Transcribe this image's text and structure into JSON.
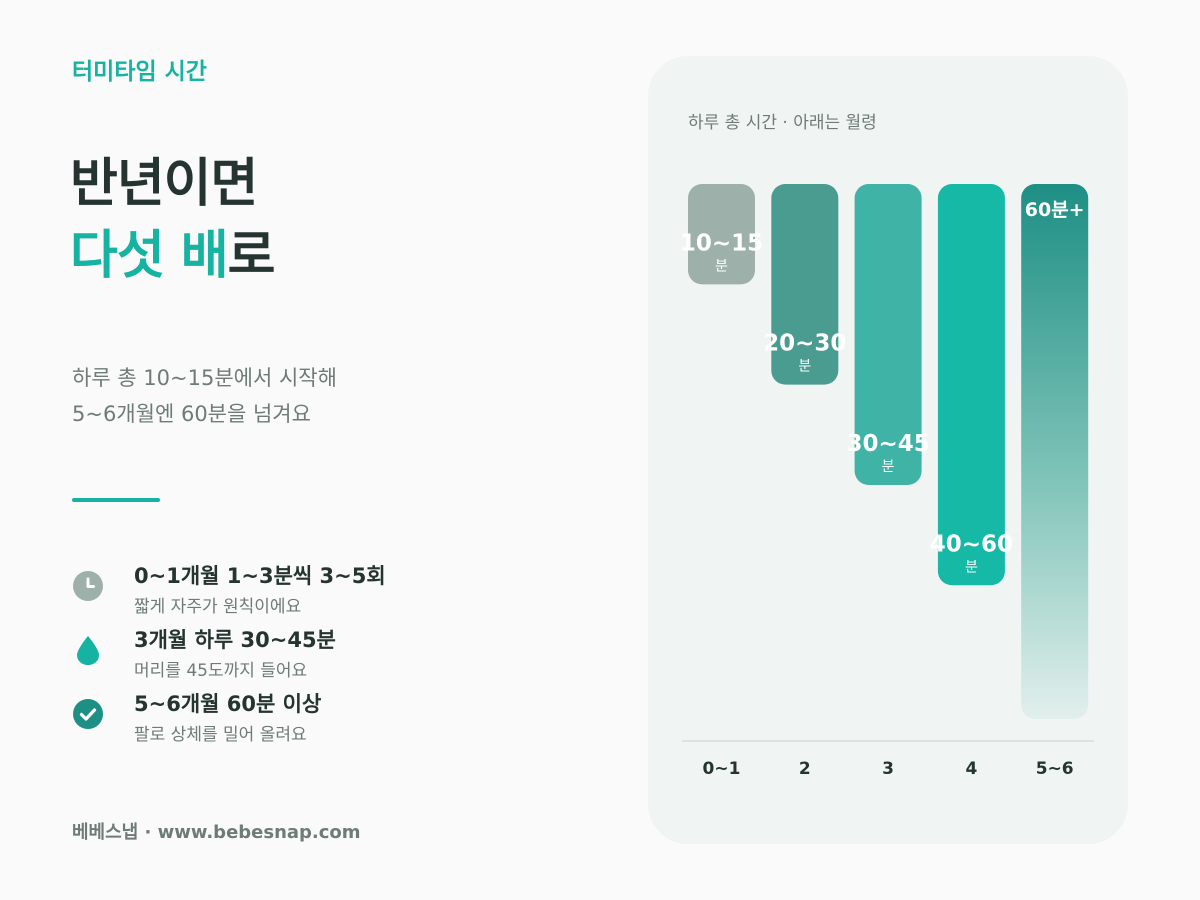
{
  "eyebrow": "터미타임 시간",
  "headline": {
    "line1": "반년이면",
    "line2_accent": "다섯 배",
    "line2_rest": "로"
  },
  "subtitle": {
    "line1": "하루 총 10~15분에서 시작해",
    "line2": "5~6개월엔 60분을 넘겨요"
  },
  "points": [
    {
      "icon": "clock-icon",
      "title": "0~1개월 1~3분씩 3~5회",
      "desc": "짧게 자주가 원칙이에요"
    },
    {
      "icon": "droplet-icon",
      "title": "3개월 하루 30~45분",
      "desc": "머리를 45도까지 들어요"
    },
    {
      "icon": "check-circle-icon",
      "title": "5~6개월 60분 이상",
      "desc": "팔로 상체를 밀어 올려요"
    }
  ],
  "footer": "베베스냅 · www.bebesnap.com",
  "colors": {
    "accent": "#16b3a2",
    "bars": [
      "#9db0aa",
      "#4a9c90",
      "#3eb3a6",
      "#16b8a6",
      "#1e8f85"
    ]
  },
  "chart_data": {
    "type": "bar",
    "title": "하루 총 시간 · 아래는 월령",
    "categories": [
      "0~1",
      "2",
      "3",
      "4",
      "5~6"
    ],
    "labels": [
      {
        "value": "10~15",
        "unit": "분"
      },
      {
        "value": "20~30",
        "unit": "분"
      },
      {
        "value": "30~45",
        "unit": "분"
      },
      {
        "value": "40~60",
        "unit": "분"
      },
      {
        "value": "60분+",
        "unit": ""
      }
    ],
    "values": [
      15,
      30,
      45,
      60,
      80
    ],
    "ylim": [
      0,
      80
    ]
  }
}
